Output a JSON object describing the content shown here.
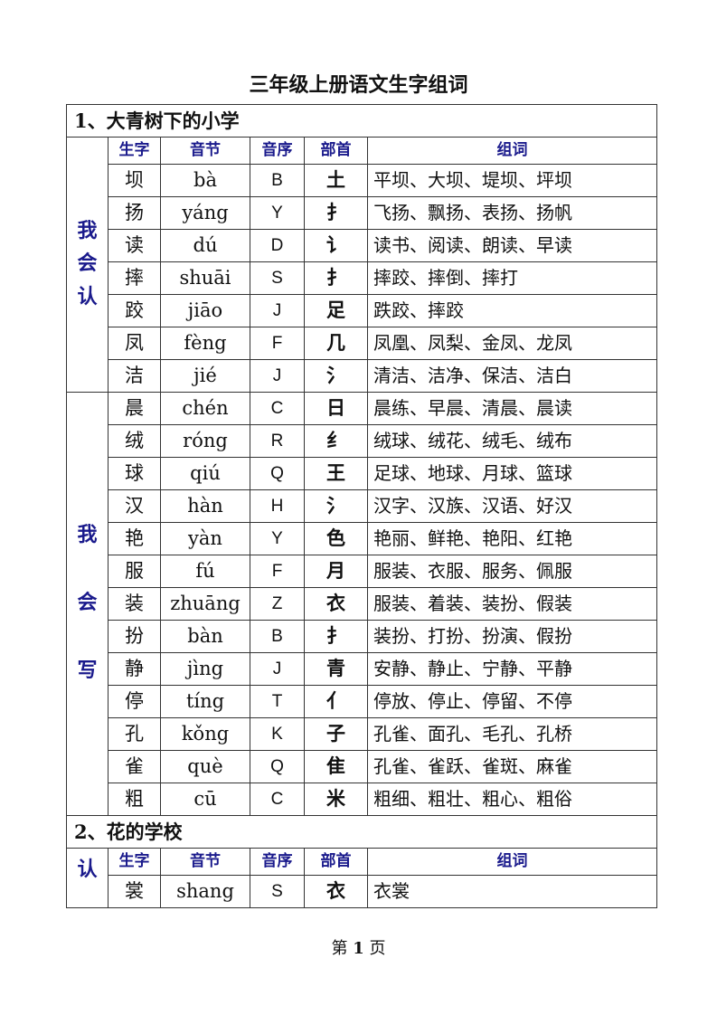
{
  "title": "三年级上册语文生字组词",
  "headers": [
    "生字",
    "音节",
    "音序",
    "部首",
    "组词"
  ],
  "sections": [
    {
      "heading": "1、大青树下的小学",
      "groups": [
        {
          "label": "我会认",
          "rows": [
            [
              "坝",
              "bà",
              "B",
              "土",
              "平坝、大坝、堤坝、坪坝"
            ],
            [
              "扬",
              "yáng",
              "Y",
              "扌",
              "飞扬、飘扬、表扬、扬帆"
            ],
            [
              "读",
              "dú",
              "D",
              "讠",
              "读书、阅读、朗读、早读"
            ],
            [
              "摔",
              "shuāi",
              "S",
              "扌",
              "摔跤、摔倒、摔打"
            ],
            [
              "跤",
              "jiāo",
              "J",
              "足",
              "跌跤、摔跤"
            ],
            [
              "凤",
              "fèng",
              "F",
              "几",
              "凤凰、凤梨、金凤、龙凤"
            ],
            [
              "洁",
              "jié",
              "J",
              "氵",
              "清洁、洁净、保洁、洁白"
            ]
          ]
        },
        {
          "label": "我会写",
          "rows": [
            [
              "晨",
              "chén",
              "C",
              "日",
              "晨练、早晨、清晨、晨读"
            ],
            [
              "绒",
              "róng",
              "R",
              "纟",
              "绒球、绒花、绒毛、绒布"
            ],
            [
              "球",
              "qiú",
              "Q",
              "王",
              "足球、地球、月球、篮球"
            ],
            [
              "汉",
              "hàn",
              "H",
              "氵",
              "汉字、汉族、汉语、好汉"
            ],
            [
              "艳",
              "yàn",
              "Y",
              "色",
              "艳丽、鲜艳、艳阳、红艳"
            ],
            [
              "服",
              "fú",
              "F",
              "月",
              "服装、衣服、服务、佩服"
            ],
            [
              "装",
              "zhuāng",
              "Z",
              "衣",
              "服装、着装、装扮、假装"
            ],
            [
              "扮",
              "bàn",
              "B",
              "扌",
              "装扮、打扮、扮演、假扮"
            ],
            [
              "静",
              "jìng",
              "J",
              "青",
              "安静、静止、宁静、平静"
            ],
            [
              "停",
              "tíng",
              "T",
              "亻",
              "停放、停止、停留、不停"
            ],
            [
              "孔",
              "kǒng",
              "K",
              "子",
              "孔雀、面孔、毛孔、孔桥"
            ],
            [
              "雀",
              "què",
              "Q",
              "隹",
              "孔雀、雀跃、雀斑、麻雀"
            ],
            [
              "粗",
              "cū",
              "C",
              "米",
              "粗细、粗壮、粗心、粗俗"
            ]
          ]
        }
      ]
    },
    {
      "heading": "2、花的学校",
      "groups": [
        {
          "label": "认",
          "header_inline": true,
          "rows": [
            [
              "裳",
              "shang",
              "S",
              "衣",
              "衣裳"
            ]
          ]
        }
      ]
    }
  ],
  "footer": {
    "prefix": "第",
    "page": "1",
    "suffix": "页"
  }
}
